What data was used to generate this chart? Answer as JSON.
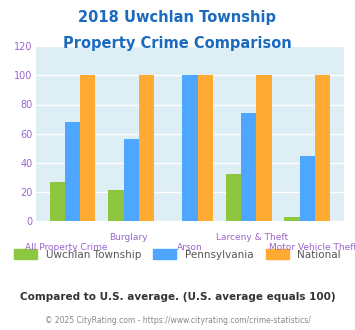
{
  "title_line1": "2018 Uwchlan Township",
  "title_line2": "Property Crime Comparison",
  "title_color": "#1a6bbf",
  "categories": [
    "All Property Crime",
    "Burglary",
    "Arson",
    "Larceny & Theft",
    "Motor Vehicle Theft"
  ],
  "uwchlan": [
    27,
    21,
    0,
    32,
    3
  ],
  "pennsylvania": [
    68,
    56,
    100,
    74,
    45
  ],
  "national": [
    100,
    100,
    100,
    100,
    100
  ],
  "uwchlan_color": "#8dc63f",
  "pennsylvania_color": "#4da6ff",
  "national_color": "#ffaa33",
  "ylim": [
    0,
    120
  ],
  "yticks": [
    0,
    20,
    40,
    60,
    80,
    100,
    120
  ],
  "background_color": "#ddeef4",
  "grid_color": "#ffffff",
  "legend_labels": [
    "Uwchlan Township",
    "Pennsylvania",
    "National"
  ],
  "footnote1": "Compared to U.S. average. (U.S. average equals 100)",
  "footnote2": "© 2025 CityRating.com - https://www.cityrating.com/crime-statistics/",
  "footnote1_color": "#333333",
  "footnote2_color": "#888888",
  "xlabel_top_color": "#9966cc",
  "xlabel_bot_color": "#9966cc",
  "tick_color": "#9966cc"
}
